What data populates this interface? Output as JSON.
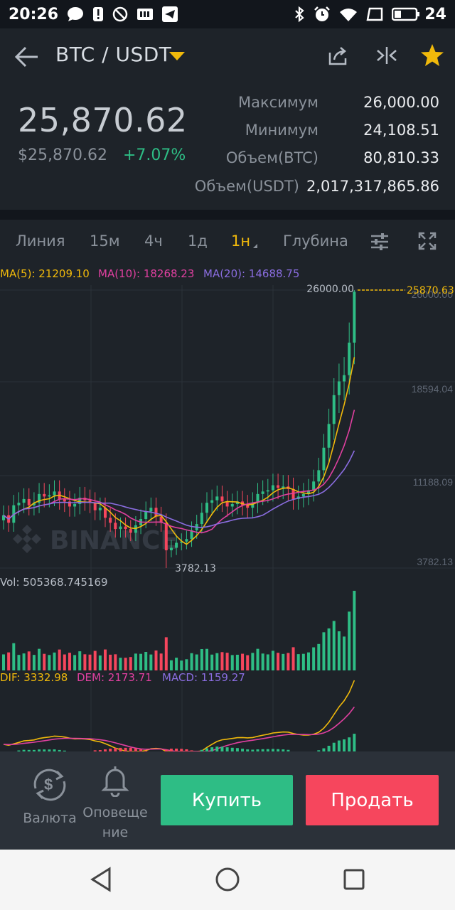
{
  "status_bar": {
    "time": "20:26",
    "battery": "24"
  },
  "header": {
    "pair": "BTC / USDT"
  },
  "ticker": {
    "price": "25,870.62",
    "usd_price": "$25,870.62",
    "change": "+7.07%",
    "stats": [
      {
        "label": "Максимум",
        "value": "26,000.00"
      },
      {
        "label": "Минимум",
        "value": "24,108.51"
      },
      {
        "label": "Объем(BTC)",
        "value": "80,810.33"
      },
      {
        "label": "Объем(USDT)",
        "value": "2,017,317,865.86"
      }
    ]
  },
  "tabs": [
    "Линия",
    "15м",
    "4ч",
    "1д",
    "1н",
    "Глубина"
  ],
  "active_tab": "1н",
  "chart": {
    "ma5": "MA(5): 21209.10",
    "ma10": "MA(10): 18268.23",
    "ma20": "MA(20): 14688.75",
    "y_labels": [
      "26000.00",
      "18594.04",
      "11188.09",
      "3782.13"
    ],
    "high_label": "26000.00",
    "low_label": "3782.13",
    "last_price": "25870.63",
    "watermark": "BINANCE",
    "vol": "Vol: 505368.745169",
    "dif": "DIF: 3332.98",
    "dem": "DEM: 2173.71",
    "macd": "MACD: 1159.27",
    "colors": {
      "up": "#2ebd85",
      "down": "#f6465d",
      "ma5": "#f0b90b",
      "ma10": "#e040a0",
      "ma20": "#8a6de0"
    }
  },
  "chart_data": {
    "type": "candlestick",
    "ylim": [
      3782.13,
      26000
    ],
    "high": 26000,
    "low": 3782.13,
    "last": 25870.63,
    "close": [
      8000,
      7400,
      8800,
      9000,
      9300,
      8800,
      9000,
      9700,
      9500,
      9600,
      9900,
      9300,
      9100,
      8700,
      8900,
      9400,
      9200,
      9000,
      8400,
      8600,
      7800,
      7400,
      6900,
      7100,
      6900,
      6600,
      7200,
      7700,
      8300,
      8600,
      7900,
      7400,
      5200,
      5400,
      5800,
      5900,
      6100,
      6800,
      7300,
      8200,
      9000,
      9200,
      9500,
      9100,
      8700,
      8900,
      9100,
      8800,
      8600,
      9000,
      9700,
      9900,
      10000,
      10400,
      10200,
      10300,
      10100,
      9300,
      9500,
      9700,
      10000,
      10700,
      11600,
      13400,
      15300,
      17600,
      18700,
      19200,
      21800,
      25870
    ]
  },
  "bottom_bar": {
    "currency_label": "Валюта",
    "alerts_label": "Оповеще ние",
    "buy": "Купить",
    "sell": "Продать"
  }
}
